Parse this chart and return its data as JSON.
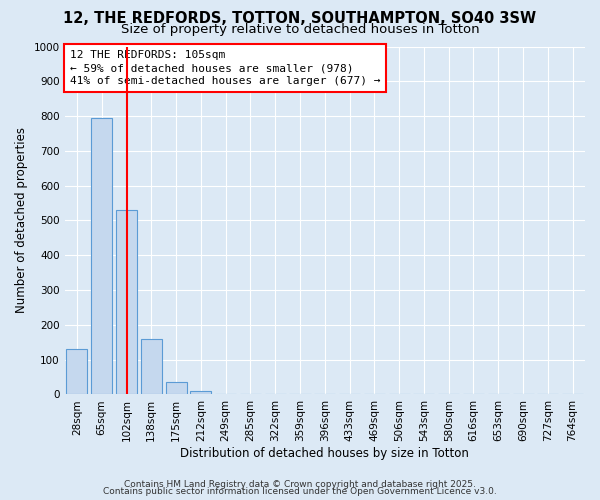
{
  "title1": "12, THE REDFORDS, TOTTON, SOUTHAMPTON, SO40 3SW",
  "title2": "Size of property relative to detached houses in Totton",
  "xlabel": "Distribution of detached houses by size in Totton",
  "ylabel": "Number of detached properties",
  "bar_labels": [
    "28sqm",
    "65sqm",
    "102sqm",
    "138sqm",
    "175sqm",
    "212sqm",
    "249sqm",
    "285sqm",
    "322sqm",
    "359sqm",
    "396sqm",
    "433sqm",
    "469sqm",
    "506sqm",
    "543sqm",
    "580sqm",
    "616sqm",
    "653sqm",
    "690sqm",
    "727sqm",
    "764sqm"
  ],
  "bar_values": [
    130,
    795,
    530,
    160,
    35,
    10,
    0,
    0,
    0,
    0,
    0,
    0,
    0,
    0,
    0,
    0,
    0,
    0,
    0,
    0,
    0
  ],
  "bar_color": "#c5d8ee",
  "bar_edgecolor": "#5b9bd5",
  "redline_index": 2,
  "annotation_text": "12 THE REDFORDS: 105sqm\n← 59% of detached houses are smaller (978)\n41% of semi-detached houses are larger (677) →",
  "ylim": [
    0,
    1000
  ],
  "yticks": [
    0,
    100,
    200,
    300,
    400,
    500,
    600,
    700,
    800,
    900,
    1000
  ],
  "background_color": "#dce9f5",
  "plot_bg_color": "#dce9f5",
  "grid_color": "#ffffff",
  "footer1": "Contains HM Land Registry data © Crown copyright and database right 2025.",
  "footer2": "Contains public sector information licensed under the Open Government Licence v3.0.",
  "title_fontsize": 10.5,
  "subtitle_fontsize": 9.5,
  "axis_label_fontsize": 8.5,
  "tick_fontsize": 7.5,
  "annotation_fontsize": 8,
  "footer_fontsize": 6.5
}
